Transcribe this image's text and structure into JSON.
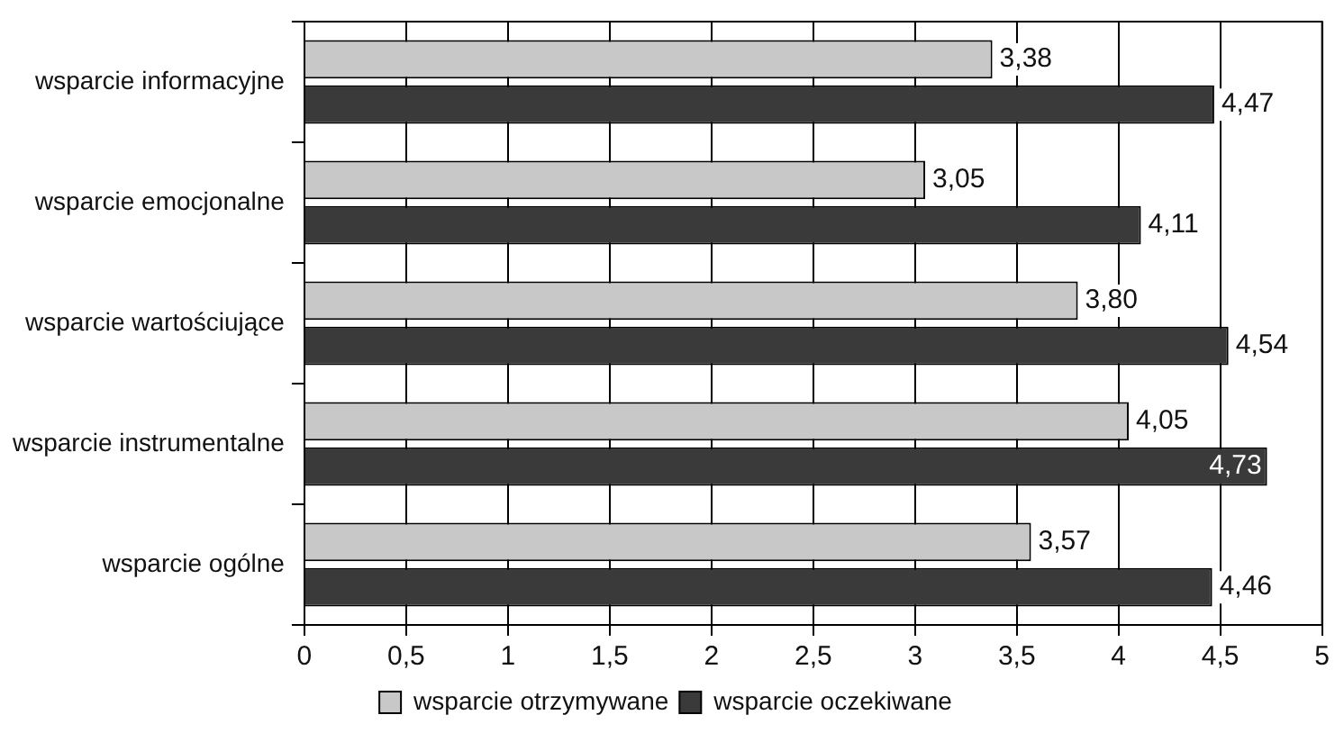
{
  "chart_data": {
    "type": "bar",
    "orientation": "horizontal",
    "categories": [
      "wsparcie informacyjne",
      "wsparcie emocjonalne",
      "wsparcie wartościujące",
      "wsparcie instrumentalne",
      "wsparcie ogólne"
    ],
    "series": [
      {
        "name": "wsparcie otrzymywane",
        "color": "#c8c8c8",
        "values": [
          3.38,
          3.05,
          3.8,
          4.05,
          3.57
        ],
        "value_labels": [
          "3,38",
          "3,05",
          "3,80",
          "4,05",
          "3,57"
        ]
      },
      {
        "name": "wsparcie oczekiwane",
        "color": "#3a3a3a",
        "values": [
          4.47,
          4.11,
          4.54,
          4.73,
          4.46
        ],
        "value_labels": [
          "4,47",
          "4,11",
          "4,54",
          "4,73",
          "4,46"
        ]
      }
    ],
    "xlim": [
      0,
      5
    ],
    "xticks": [
      0,
      {
        "value": 0.5,
        "label": "0,5"
      },
      1,
      {
        "value": 1.5,
        "label": "1,5"
      },
      2,
      {
        "value": 2.5,
        "label": "2,5"
      },
      3,
      {
        "value": 3.5,
        "label": "3,5"
      },
      4,
      {
        "value": 4.5,
        "label": "4,5"
      },
      5
    ],
    "grid": "x",
    "legend": "bottom"
  }
}
